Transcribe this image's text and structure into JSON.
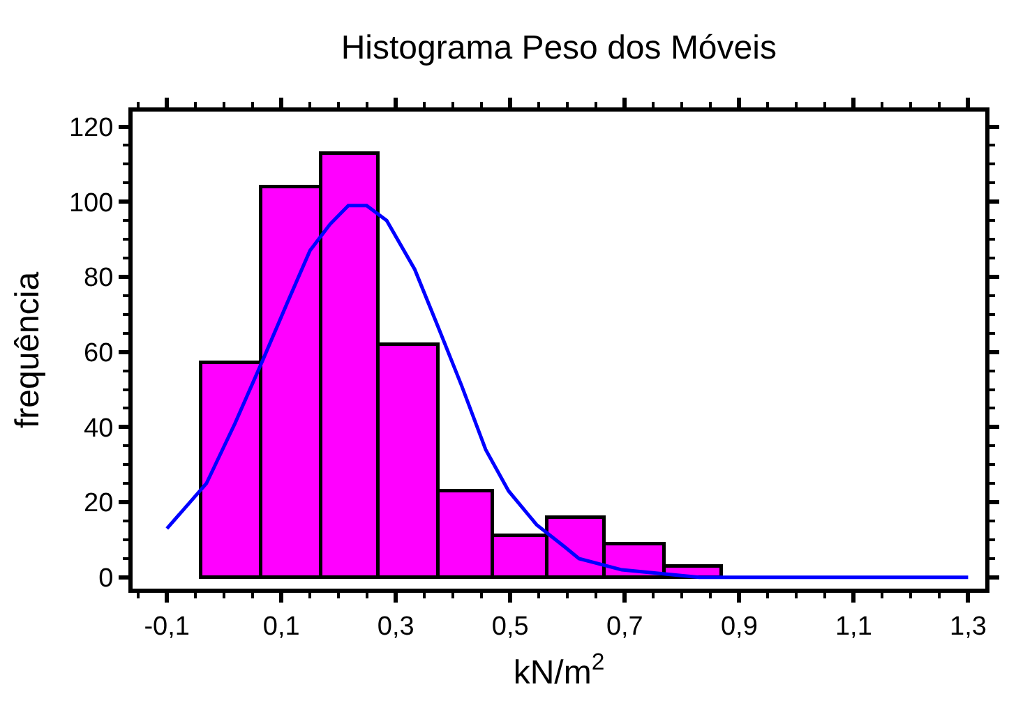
{
  "chart_data": {
    "type": "histogram",
    "title": "Histograma Peso dos Móveis",
    "xlabel": "kN/m$^{2}$",
    "ylabel": "frequência",
    "bins": [
      -0.04,
      0.065,
      0.17,
      0.27,
      0.375,
      0.47,
      0.565,
      0.665,
      0.77,
      0.87
    ],
    "values": [
      57,
      104,
      113,
      62,
      23,
      11,
      16,
      9,
      3
    ],
    "color": "#ff00ff",
    "series": [
      {
        "type": "line",
        "color": "#0000ff",
        "x": [
          -0.1,
          -0.031,
          0.019,
          0.068,
          0.11,
          0.15,
          0.185,
          0.217,
          0.249,
          0.284,
          0.333,
          0.373,
          0.415,
          0.457,
          0.497,
          0.546,
          0.596,
          0.62,
          0.695,
          0.83,
          1.3
        ],
        "values": [
          13,
          25,
          41,
          58,
          73,
          87,
          94,
          99,
          99,
          95,
          82,
          67,
          51,
          34,
          23,
          14,
          8,
          5,
          2,
          0,
          0
        ]
      }
    ],
    "xlim": [
      -0.16,
      1.33
    ],
    "ylim": [
      -3,
      124
    ],
    "xticks": [
      {
        "value": -0.1,
        "label": "-0,1"
      },
      {
        "value": 0.1,
        "label": "0,1"
      },
      {
        "value": 0.3,
        "label": "0,3"
      },
      {
        "value": 0.5,
        "label": "0,5"
      },
      {
        "value": 0.7,
        "label": "0,7"
      },
      {
        "value": 0.9,
        "label": "0,9"
      },
      {
        "value": 1.1,
        "label": "1,1"
      },
      {
        "value": 1.3,
        "label": "1,3"
      }
    ],
    "yticks": [
      0,
      20,
      40,
      60,
      80,
      100,
      120
    ]
  }
}
